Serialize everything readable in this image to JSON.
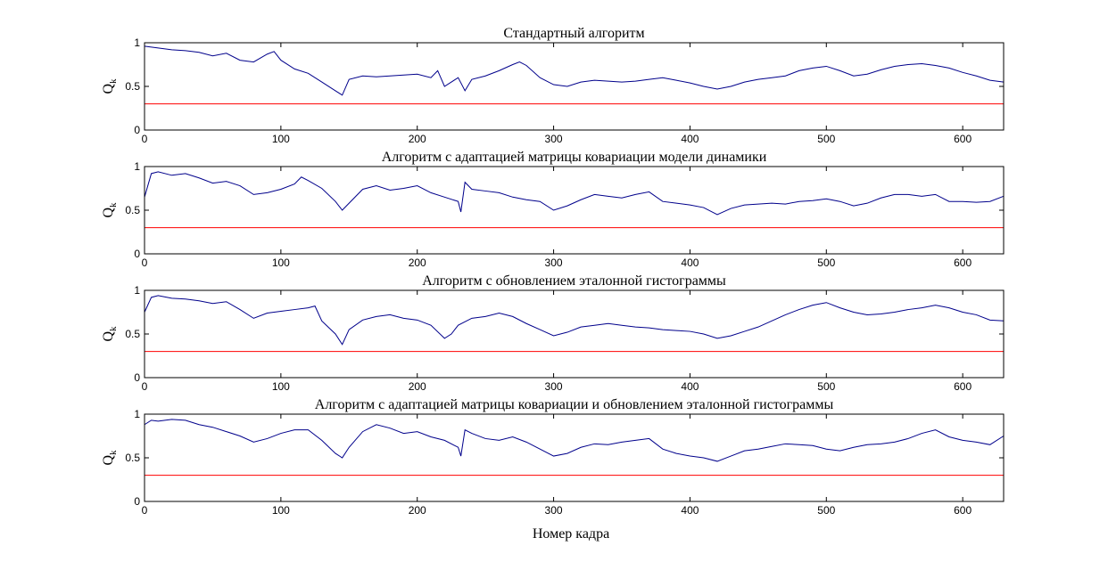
{
  "figure": {
    "xlabel": "Номер кадра"
  },
  "chart_data": [
    {
      "type": "line",
      "title": "Стандартный алгоритм",
      "ylabel": "Q",
      "ylabel_subscript": "k",
      "xlim": [
        0,
        630
      ],
      "ylim": [
        0,
        1
      ],
      "xticks": [
        0,
        100,
        200,
        300,
        400,
        500,
        600
      ],
      "yticks": [
        0,
        0.5,
        1
      ],
      "grid": false,
      "series": [
        {
          "color": "#00008b",
          "x": [
            0,
            10,
            20,
            30,
            40,
            50,
            60,
            70,
            80,
            90,
            95,
            100,
            110,
            120,
            130,
            140,
            145,
            150,
            160,
            170,
            180,
            190,
            200,
            210,
            215,
            220,
            230,
            235,
            240,
            250,
            260,
            270,
            275,
            280,
            290,
            300,
            310,
            320,
            330,
            340,
            350,
            360,
            370,
            380,
            390,
            400,
            410,
            420,
            430,
            440,
            450,
            460,
            470,
            480,
            490,
            500,
            510,
            520,
            530,
            540,
            550,
            560,
            570,
            580,
            590,
            600,
            610,
            620,
            630
          ],
          "y": [
            0.96,
            0.94,
            0.92,
            0.91,
            0.89,
            0.85,
            0.88,
            0.8,
            0.78,
            0.87,
            0.9,
            0.8,
            0.7,
            0.65,
            0.55,
            0.45,
            0.4,
            0.58,
            0.62,
            0.61,
            0.62,
            0.63,
            0.64,
            0.6,
            0.68,
            0.5,
            0.6,
            0.45,
            0.58,
            0.62,
            0.68,
            0.75,
            0.78,
            0.74,
            0.6,
            0.52,
            0.5,
            0.55,
            0.57,
            0.56,
            0.55,
            0.56,
            0.58,
            0.6,
            0.57,
            0.54,
            0.5,
            0.47,
            0.5,
            0.55,
            0.58,
            0.6,
            0.62,
            0.68,
            0.71,
            0.73,
            0.68,
            0.62,
            0.64,
            0.69,
            0.73,
            0.75,
            0.76,
            0.74,
            0.71,
            0.66,
            0.62,
            0.57,
            0.55
          ]
        },
        {
          "color": "#ff0000",
          "x": [
            0,
            630
          ],
          "y": [
            0.3,
            0.3
          ]
        }
      ]
    },
    {
      "type": "line",
      "title": "Алгоритм с адаптацией матрицы ковариации модели динамики",
      "ylabel": "Q",
      "ylabel_subscript": "k",
      "xlim": [
        0,
        630
      ],
      "ylim": [
        0,
        1
      ],
      "xticks": [
        0,
        100,
        200,
        300,
        400,
        500,
        600
      ],
      "yticks": [
        0,
        0.5,
        1
      ],
      "grid": false,
      "series": [
        {
          "color": "#00008b",
          "x": [
            0,
            5,
            10,
            20,
            30,
            40,
            50,
            60,
            70,
            80,
            90,
            100,
            110,
            115,
            120,
            130,
            140,
            145,
            150,
            160,
            170,
            180,
            190,
            200,
            210,
            220,
            230,
            232,
            235,
            240,
            250,
            260,
            270,
            280,
            290,
            300,
            310,
            320,
            330,
            340,
            350,
            360,
            370,
            380,
            390,
            400,
            410,
            420,
            430,
            440,
            450,
            460,
            470,
            480,
            490,
            500,
            510,
            520,
            530,
            540,
            550,
            560,
            570,
            580,
            590,
            600,
            610,
            620,
            630
          ],
          "y": [
            0.65,
            0.92,
            0.94,
            0.9,
            0.92,
            0.87,
            0.81,
            0.83,
            0.78,
            0.68,
            0.7,
            0.74,
            0.8,
            0.88,
            0.84,
            0.75,
            0.6,
            0.5,
            0.58,
            0.74,
            0.78,
            0.73,
            0.75,
            0.78,
            0.7,
            0.65,
            0.6,
            0.48,
            0.82,
            0.74,
            0.72,
            0.7,
            0.65,
            0.62,
            0.6,
            0.5,
            0.55,
            0.62,
            0.68,
            0.66,
            0.64,
            0.68,
            0.71,
            0.6,
            0.58,
            0.56,
            0.53,
            0.45,
            0.52,
            0.56,
            0.57,
            0.58,
            0.57,
            0.6,
            0.61,
            0.63,
            0.6,
            0.55,
            0.58,
            0.64,
            0.68,
            0.68,
            0.66,
            0.68,
            0.6,
            0.6,
            0.59,
            0.6,
            0.66
          ]
        },
        {
          "color": "#ff0000",
          "x": [
            0,
            630
          ],
          "y": [
            0.3,
            0.3
          ]
        }
      ]
    },
    {
      "type": "line",
      "title": "Алгоритм с обновлением эталонной гистограммы",
      "ylabel": "Q",
      "ylabel_subscript": "k",
      "xlim": [
        0,
        630
      ],
      "ylim": [
        0,
        1
      ],
      "xticks": [
        0,
        100,
        200,
        300,
        400,
        500,
        600
      ],
      "yticks": [
        0,
        0.5,
        1
      ],
      "grid": false,
      "series": [
        {
          "color": "#00008b",
          "x": [
            0,
            5,
            10,
            20,
            30,
            40,
            50,
            60,
            70,
            80,
            90,
            100,
            110,
            120,
            125,
            130,
            140,
            145,
            150,
            160,
            170,
            180,
            190,
            200,
            210,
            220,
            225,
            230,
            240,
            250,
            260,
            270,
            280,
            290,
            300,
            310,
            320,
            330,
            340,
            350,
            360,
            370,
            380,
            390,
            400,
            410,
            420,
            430,
            440,
            450,
            460,
            470,
            480,
            490,
            500,
            510,
            520,
            530,
            540,
            550,
            560,
            570,
            580,
            590,
            600,
            610,
            620,
            630
          ],
          "y": [
            0.75,
            0.92,
            0.94,
            0.91,
            0.9,
            0.88,
            0.85,
            0.87,
            0.78,
            0.68,
            0.74,
            0.76,
            0.78,
            0.8,
            0.82,
            0.65,
            0.5,
            0.38,
            0.55,
            0.66,
            0.7,
            0.72,
            0.68,
            0.66,
            0.6,
            0.45,
            0.5,
            0.6,
            0.68,
            0.7,
            0.74,
            0.7,
            0.62,
            0.55,
            0.48,
            0.52,
            0.58,
            0.6,
            0.62,
            0.6,
            0.58,
            0.57,
            0.55,
            0.54,
            0.53,
            0.5,
            0.45,
            0.48,
            0.53,
            0.58,
            0.65,
            0.72,
            0.78,
            0.83,
            0.86,
            0.8,
            0.75,
            0.72,
            0.73,
            0.75,
            0.78,
            0.8,
            0.83,
            0.8,
            0.75,
            0.72,
            0.66,
            0.65
          ]
        },
        {
          "color": "#ff0000",
          "x": [
            0,
            630
          ],
          "y": [
            0.3,
            0.3
          ]
        }
      ]
    },
    {
      "type": "line",
      "title": "Алгоритм с адаптацией матрицы ковариации и обновлением эталонной гистограммы",
      "ylabel": "Q",
      "ylabel_subscript": "k",
      "xlim": [
        0,
        630
      ],
      "ylim": [
        0,
        1
      ],
      "xticks": [
        0,
        100,
        200,
        300,
        400,
        500,
        600
      ],
      "yticks": [
        0,
        0.5,
        1
      ],
      "grid": false,
      "series": [
        {
          "color": "#00008b",
          "x": [
            0,
            5,
            10,
            20,
            30,
            40,
            50,
            60,
            70,
            80,
            90,
            100,
            110,
            120,
            130,
            140,
            145,
            150,
            160,
            170,
            180,
            190,
            200,
            210,
            220,
            230,
            232,
            235,
            240,
            250,
            260,
            270,
            280,
            290,
            300,
            310,
            320,
            330,
            340,
            350,
            360,
            370,
            380,
            390,
            400,
            410,
            420,
            430,
            440,
            450,
            460,
            470,
            480,
            490,
            500,
            510,
            520,
            530,
            540,
            550,
            560,
            570,
            580,
            590,
            600,
            610,
            620,
            630
          ],
          "y": [
            0.88,
            0.93,
            0.92,
            0.94,
            0.93,
            0.88,
            0.85,
            0.8,
            0.75,
            0.68,
            0.72,
            0.78,
            0.82,
            0.82,
            0.7,
            0.55,
            0.5,
            0.62,
            0.8,
            0.88,
            0.84,
            0.78,
            0.8,
            0.74,
            0.7,
            0.62,
            0.52,
            0.82,
            0.78,
            0.72,
            0.7,
            0.74,
            0.68,
            0.6,
            0.52,
            0.55,
            0.62,
            0.66,
            0.65,
            0.68,
            0.7,
            0.72,
            0.6,
            0.55,
            0.52,
            0.5,
            0.46,
            0.52,
            0.58,
            0.6,
            0.63,
            0.66,
            0.65,
            0.64,
            0.6,
            0.58,
            0.62,
            0.65,
            0.66,
            0.68,
            0.72,
            0.78,
            0.82,
            0.74,
            0.7,
            0.68,
            0.65,
            0.75
          ]
        },
        {
          "color": "#ff0000",
          "x": [
            0,
            630
          ],
          "y": [
            0.3,
            0.3
          ]
        }
      ]
    }
  ]
}
